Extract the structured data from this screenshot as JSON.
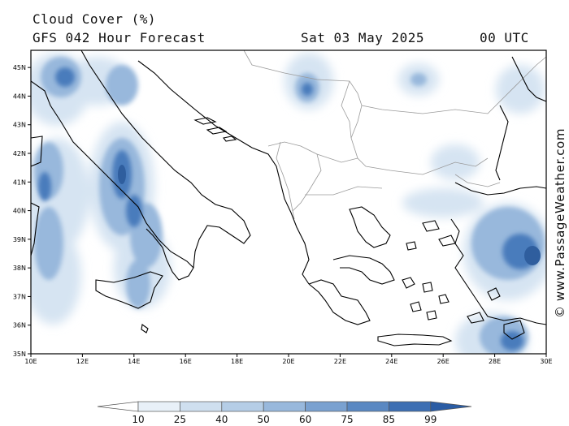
{
  "header": {
    "title": "Cloud Cover (%)",
    "subtitle": "GFS 042 Hour Forecast",
    "date": "Sat 03 May 2025",
    "time": "00 UTC"
  },
  "copyright": "© www.PassageWeather.com",
  "map": {
    "lat_labels": [
      "45N",
      "44N",
      "43N",
      "42N",
      "41N",
      "40N",
      "39N",
      "38N",
      "37N",
      "36N",
      "35N"
    ],
    "lon_labels": [
      "10E",
      "12E",
      "14E",
      "16E",
      "18E",
      "20E",
      "22E",
      "24E",
      "26E",
      "28E",
      "30E"
    ],
    "lat_range": [
      35,
      45.6
    ],
    "lon_range": [
      10,
      30
    ]
  },
  "legend": {
    "levels": [
      "10",
      "25",
      "40",
      "50",
      "60",
      "75",
      "85",
      "99"
    ],
    "colors": [
      "#ffffff",
      "#e8f0f8",
      "#cfdfef",
      "#b5cde6",
      "#98b8dc",
      "#7aa1d0",
      "#5a88c2",
      "#3d6fb3",
      "#2a5ca4"
    ]
  }
}
